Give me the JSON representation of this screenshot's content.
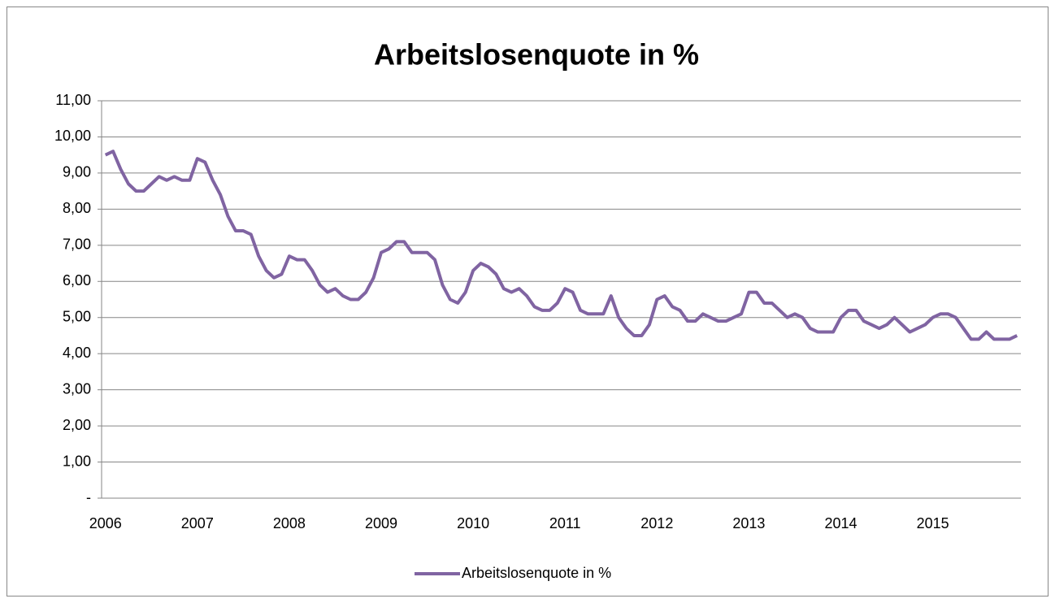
{
  "chart_data": {
    "type": "line",
    "title": "Arbeitslosenquote in %",
    "categories": [
      "2006",
      null,
      null,
      null,
      null,
      null,
      null,
      null,
      null,
      null,
      null,
      null,
      "2007",
      null,
      null,
      null,
      null,
      null,
      null,
      null,
      null,
      null,
      null,
      null,
      "2008",
      null,
      null,
      null,
      null,
      null,
      null,
      null,
      null,
      null,
      null,
      null,
      "2009",
      null,
      null,
      null,
      null,
      null,
      null,
      null,
      null,
      null,
      null,
      null,
      "2010",
      null,
      null,
      null,
      null,
      null,
      null,
      null,
      null,
      null,
      null,
      null,
      "2011",
      null,
      null,
      null,
      null,
      null,
      null,
      null,
      null,
      null,
      null,
      null,
      "2012",
      null,
      null,
      null,
      null,
      null,
      null,
      null,
      null,
      null,
      null,
      null,
      "2013",
      null,
      null,
      null,
      null,
      null,
      null,
      null,
      null,
      null,
      null,
      null,
      "2014",
      null,
      null,
      null,
      null,
      null,
      null,
      null,
      null,
      null,
      null,
      null,
      "2015",
      null,
      null,
      null,
      null,
      null,
      null,
      null,
      null,
      null,
      null,
      null
    ],
    "series": [
      {
        "name": "Arbeitslosenquote in %",
        "color": "#8064a2",
        "values": [
          9.5,
          9.6,
          9.1,
          8.7,
          8.5,
          8.5,
          8.7,
          8.9,
          8.8,
          8.9,
          8.8,
          8.8,
          9.4,
          9.3,
          8.8,
          8.4,
          7.8,
          7.4,
          7.4,
          7.3,
          6.7,
          6.3,
          6.1,
          6.2,
          6.7,
          6.6,
          6.6,
          6.3,
          5.9,
          5.7,
          5.8,
          5.6,
          5.5,
          5.5,
          5.7,
          6.1,
          6.8,
          6.9,
          7.1,
          7.1,
          6.8,
          6.8,
          6.8,
          6.6,
          5.9,
          5.5,
          5.4,
          5.7,
          6.3,
          6.5,
          6.4,
          6.2,
          5.8,
          5.7,
          5.8,
          5.6,
          5.3,
          5.2,
          5.2,
          5.4,
          5.8,
          5.7,
          5.2,
          5.1,
          5.1,
          5.1,
          5.6,
          5.0,
          4.7,
          4.5,
          4.5,
          4.8,
          5.5,
          5.6,
          5.3,
          5.2,
          4.9,
          4.9,
          5.1,
          5.0,
          4.9,
          4.9,
          5.0,
          5.1,
          5.7,
          5.7,
          5.4,
          5.4,
          5.2,
          5.0,
          5.1,
          5.0,
          4.7,
          4.6,
          4.6,
          4.6,
          5.0,
          5.2,
          5.2,
          4.9,
          4.8,
          4.7,
          4.8,
          5.0,
          4.8,
          4.6,
          4.7,
          4.8,
          5.0,
          5.1,
          5.1,
          5.0,
          4.7,
          4.4,
          4.4,
          4.6,
          4.4,
          4.4,
          4.4,
          4.5
        ]
      }
    ],
    "ylim": [
      0,
      11
    ],
    "yticks": [
      {
        "value": 0,
        "label": "-"
      },
      {
        "value": 1,
        "label": "1,00"
      },
      {
        "value": 2,
        "label": "2,00"
      },
      {
        "value": 3,
        "label": "3,00"
      },
      {
        "value": 4,
        "label": "4,00"
      },
      {
        "value": 5,
        "label": "5,00"
      },
      {
        "value": 6,
        "label": "6,00"
      },
      {
        "value": 7,
        "label": "7,00"
      },
      {
        "value": 8,
        "label": "8,00"
      },
      {
        "value": 9,
        "label": "9,00"
      },
      {
        "value": 10,
        "label": "10,00"
      },
      {
        "value": 11,
        "label": "11,00"
      }
    ],
    "grid": true,
    "legend": "bottom"
  }
}
